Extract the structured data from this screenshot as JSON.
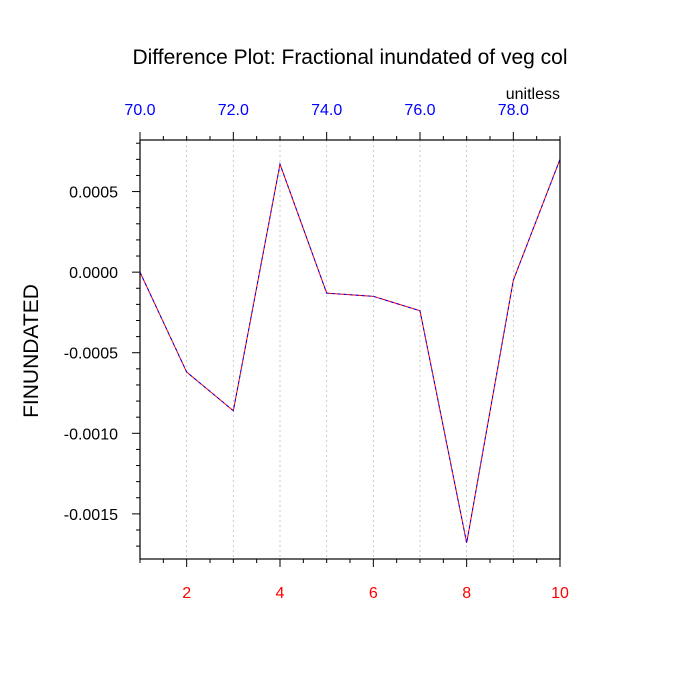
{
  "chart_data": {
    "type": "line",
    "title": "Difference Plot: Fractional inundated of veg col",
    "units": "unitless",
    "ylabel": "FINUNDATED",
    "xlim": [
      1,
      10
    ],
    "ylim": [
      -0.00178,
      0.00082
    ],
    "top_xlim": [
      70.0,
      79.0
    ],
    "x_ticks": [
      2,
      4,
      6,
      8,
      10
    ],
    "x_tick_labels": [
      "2",
      "4",
      "6",
      "8",
      "10"
    ],
    "top_ticks": [
      70.0,
      72.0,
      74.0,
      76.0,
      78.0
    ],
    "top_tick_labels": [
      "70.0",
      "72.0",
      "74.0",
      "76.0",
      "78.0"
    ],
    "y_ticks": [
      0.0005,
      0.0,
      -0.0005,
      -0.001,
      -0.0015
    ],
    "y_tick_labels": [
      "0.0005",
      "0.0000",
      "-0.0005",
      "-0.0010",
      "-0.0015"
    ],
    "grid_x": [
      2,
      3,
      4,
      5,
      6,
      7,
      8,
      9
    ],
    "series": [
      {
        "x": [
          1,
          2,
          3,
          4,
          5,
          6,
          7,
          8,
          9,
          10
        ],
        "y": [
          0.0,
          -0.00062,
          -0.00086,
          0.00067,
          -0.00013,
          -0.00015,
          -0.00024,
          -0.00168,
          -5e-05,
          0.0007
        ],
        "color": "#ff0000",
        "dash_color": "#0000ff"
      }
    ],
    "colors": {
      "bottom_ticks": "#ff0000",
      "top_ticks": "#0000ff",
      "left_ticks": "#000000",
      "grid": "#bbbbbb"
    }
  }
}
